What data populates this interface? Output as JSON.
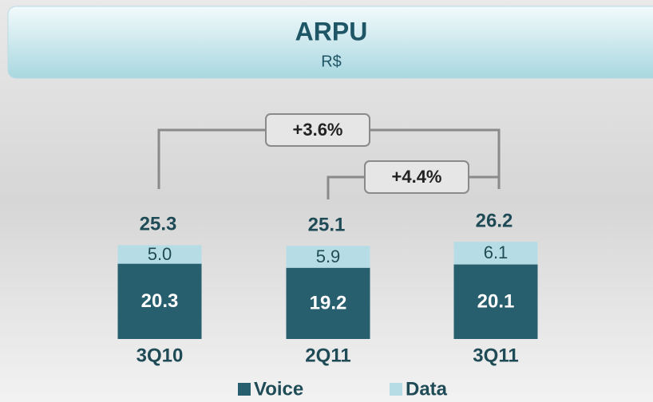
{
  "chart_data": {
    "type": "stacked_bar",
    "title": "ARPU",
    "subtitle": "R$",
    "categories": [
      "3Q10",
      "2Q11",
      "3Q11"
    ],
    "series": [
      {
        "name": "Voice",
        "color": "#275f6e",
        "values": [
          20.3,
          19.2,
          20.1
        ]
      },
      {
        "name": "Data",
        "color": "#b6dde5",
        "values": [
          5.0,
          5.9,
          6.1
        ],
        "value_labels": [
          "5.0",
          "5.9",
          "6.1"
        ]
      }
    ],
    "totals": [
      25.3,
      25.1,
      26.2
    ],
    "annotations": [
      "+3.6%",
      "+4.4%"
    ],
    "legend": "bottom"
  }
}
